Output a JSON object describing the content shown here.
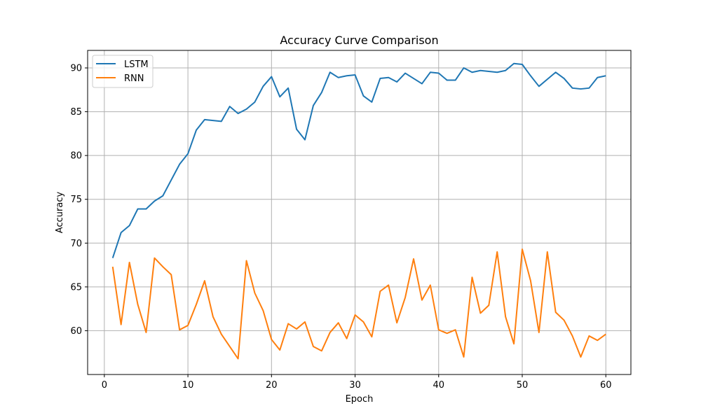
{
  "chart_data": {
    "type": "line",
    "title": "Accuracy Curve Comparison",
    "xlabel": "Epoch",
    "ylabel": "Accuracy",
    "xlim": [
      -2,
      63
    ],
    "ylim": [
      55.0,
      92.0
    ],
    "xticks": [
      0,
      10,
      20,
      30,
      40,
      50,
      60
    ],
    "yticks": [
      60,
      65,
      70,
      75,
      80,
      85,
      90
    ],
    "grid": true,
    "legend_position": "top-left",
    "x": [
      1,
      2,
      3,
      4,
      5,
      6,
      7,
      8,
      9,
      10,
      11,
      12,
      13,
      14,
      15,
      16,
      17,
      18,
      19,
      20,
      21,
      22,
      23,
      24,
      25,
      26,
      27,
      28,
      29,
      30,
      31,
      32,
      33,
      34,
      35,
      36,
      37,
      38,
      39,
      40,
      41,
      42,
      43,
      44,
      45,
      46,
      47,
      48,
      49,
      50,
      51,
      52,
      53,
      54,
      55,
      56,
      57,
      58,
      59,
      60
    ],
    "series": [
      {
        "name": "LSTM",
        "color": "#1f77b4",
        "values": [
          68.3,
          71.2,
          72.0,
          73.9,
          73.9,
          74.8,
          75.4,
          77.2,
          79.0,
          80.2,
          82.9,
          84.1,
          84.0,
          83.9,
          85.6,
          84.8,
          85.3,
          86.1,
          87.9,
          89.0,
          86.7,
          87.7,
          83.0,
          81.8,
          85.7,
          87.2,
          89.5,
          88.9,
          89.1,
          89.2,
          86.8,
          86.1,
          88.8,
          88.9,
          88.4,
          89.4,
          88.8,
          88.2,
          89.5,
          89.4,
          88.6,
          88.6,
          90.0,
          89.5,
          89.7,
          89.6,
          89.5,
          89.7,
          90.5,
          90.4,
          89.1,
          87.9,
          88.7,
          89.5,
          88.8,
          87.7,
          87.6,
          87.7,
          88.9,
          89.1
        ]
      },
      {
        "name": "RNN",
        "color": "#ff7f0e",
        "values": [
          67.3,
          60.7,
          67.8,
          63.0,
          59.8,
          68.3,
          67.3,
          66.4,
          60.1,
          60.6,
          63.0,
          65.7,
          61.6,
          59.6,
          58.2,
          56.8,
          68.0,
          64.3,
          62.3,
          59.0,
          57.8,
          60.8,
          60.2,
          61.0,
          58.2,
          57.7,
          59.8,
          60.9,
          59.1,
          61.8,
          61.0,
          59.3,
          64.5,
          65.2,
          60.9,
          63.8,
          68.2,
          63.5,
          65.2,
          60.1,
          59.7,
          60.1,
          57.0,
          66.1,
          62.0,
          62.9,
          69.0,
          61.6,
          58.5,
          69.3,
          65.7,
          59.8,
          69.0,
          62.1,
          61.2,
          59.4,
          57.0,
          59.4,
          58.9,
          59.6
        ]
      }
    ]
  }
}
